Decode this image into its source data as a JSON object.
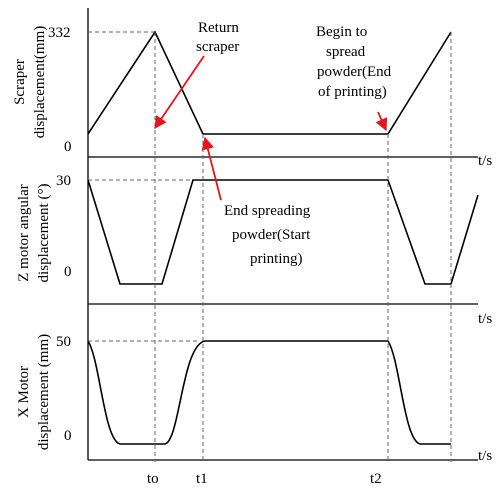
{
  "diagram": {
    "colors": {
      "curve": "#000000",
      "guide": "#666666",
      "arrow": "#e8141b"
    },
    "panels": [
      {
        "id": "scraper",
        "y_label_line1": "Scraper",
        "y_label_line2": "displacement(mm)",
        "y_ticks": [
          "332",
          "0"
        ],
        "x_unit": "t/s"
      },
      {
        "id": "z-motor",
        "y_label_line1": "Z motor angular",
        "y_label_line2": "displacement (°)",
        "y_ticks": [
          "30",
          "0"
        ],
        "x_unit": "t/s"
      },
      {
        "id": "x-motor",
        "y_label_line1": "X Motor",
        "y_label_line2": "displacement (mm)",
        "y_ticks": [
          "50",
          "0"
        ],
        "x_unit": "t/s"
      }
    ],
    "time_marks": [
      "to",
      "t1",
      "t2"
    ],
    "annotations": {
      "return_scraper": [
        "Return",
        "scraper"
      ],
      "begin_spread": [
        "Begin to",
        "spread",
        "powder(End",
        "of printing)"
      ],
      "end_spread": [
        "End spreading",
        "powder(Start",
        "printing)"
      ]
    }
  }
}
